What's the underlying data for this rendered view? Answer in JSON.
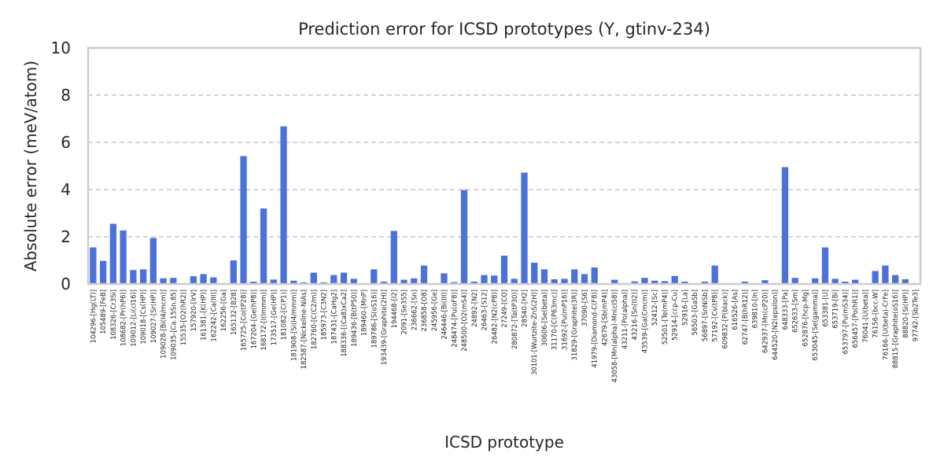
{
  "chart_data": {
    "type": "bar",
    "title": "Prediction error for ICSD prototypes (Y, gtinv-234)",
    "xlabel": "ICSD prototype",
    "ylabel": "Absolute error (meV/atom)",
    "ylim": [
      0,
      10
    ],
    "yticks": [
      0,
      2,
      4,
      6,
      8,
      10
    ],
    "grid": true,
    "bar_color": "#4C72D8",
    "categories": [
      "104296-[Hg(LT)]",
      "105489-[FeB]",
      "108326-[Cr3Si]",
      "108682-[Pr(hP6)]",
      "109012-[Li(cI16)]",
      "109018-[Cs(HP)]",
      "109027-[Sr(HP)]",
      "109028-[Bi(I4/mcm)]",
      "109035-[Ca.15Sn.85]",
      "15535-[O2(hR2)]",
      "157920-[IrV]",
      "161381-[K(HP)]",
      "162242-[Ca(III)]",
      "162256-[Ga]",
      "165132-[B28]",
      "165725-[Co(tP28)]",
      "167204-[Ge(hP8)]",
      "168172-[I(Immm)]",
      "173517-[Ge(HP)]",
      "181082-[C(P1)]",
      "181908-[Si(I4/mmm)]",
      "182587-[Nickeline-NiAs]",
      "182760-[C(C2/m)]",
      "185973-[C3N2]",
      "187431-[CaHg2]",
      "188336-[(Ca8)xCa2]",
      "189436-[B(tP50)]",
      "189460-[MnP]",
      "189786-[S(oS16)]",
      "193439-[Graphite(2H)]",
      "194468-[I2]",
      "2091-[Se3S5]",
      "236662-[Sn]",
      "236858-[O8]",
      "245956-[Ge]",
      "246446-[Bi(III)]",
      "248474-[Pu(oF8)]",
      "248500-[O2(mS4)]",
      "24892-[N2]",
      "26463-[S12]",
      "26482-[N2(cP8)]",
      "27249-[CO]",
      "280872-[Ta(tP30)]",
      "28540-[H2]",
      "30101-[Wurtzite-ZnS(2H)]",
      "30606-[Se(beta)]",
      "31170-[C(P63mc)]",
      "31692-[Pu(mP16)]",
      "31829-[Graphite(3R)]",
      "37090-[S6]",
      "41979-[Diamond-C(F8)]",
      "42679-[Sb(mP4)]",
      "43058-[Mn(alpha)-Mn(cI58)]",
      "43211-[Po(alpha)]",
      "43216-[Sn(tI2)]",
      "43539-[Ga(Cmcm)]",
      "52412-[Sc]",
      "52501-[Te(mP4)]",
      "52914-[ccp-Cu]",
      "52916-[La]",
      "56503-[GaSb]",
      "56897-[SnNiSb]",
      "57192-[Cs(tP8)]",
      "609832-[P(black)]",
      "616526-[As]",
      "62747-[B(hR12)]",
      "639810-[In]",
      "642937-[Mn(cP20)]",
      "644520-[N2(epsilon)]",
      "648333-[Pa]",
      "652633-[Sm]",
      "652876-[hcp-Mg]",
      "653045-[Se(gamma)]",
      "653381-[U]",
      "653719-[Bi]",
      "653797-[Pu(mS34)]",
      "656457-[Po(hR1)]",
      "76041-[U(beta)]",
      "76156-[bcc-W]",
      "76166-[U(beta)-CrFe]",
      "88815-[Graphite(oS16)]",
      "88820-[Si(HP)]",
      "97742-[Sb2Te3]"
    ],
    "values": [
      1.55,
      0.98,
      2.55,
      2.27,
      0.59,
      0.62,
      1.95,
      0.24,
      0.26,
      0.0,
      0.33,
      0.42,
      0.28,
      0.0,
      1.0,
      5.42,
      0.1,
      3.2,
      0.19,
      6.68,
      0.14,
      0.07,
      0.48,
      0.07,
      0.38,
      0.48,
      0.22,
      0.02,
      0.62,
      0.1,
      2.25,
      0.18,
      0.24,
      0.78,
      0.0,
      0.45,
      0.08,
      3.98,
      0.1,
      0.38,
      0.36,
      1.2,
      0.22,
      4.72,
      0.9,
      0.62,
      0.2,
      0.22,
      0.62,
      0.42,
      0.7,
      0.0,
      0.18,
      0.0,
      0.11,
      0.26,
      0.14,
      0.12,
      0.34,
      0.1,
      0.02,
      0.1,
      0.78,
      0.0,
      0.0,
      0.1,
      0.0,
      0.16,
      0.0,
      4.95,
      0.26,
      0.0,
      0.24,
      1.55,
      0.22,
      0.1,
      0.18,
      0.0,
      0.55,
      0.78,
      0.38,
      0.2,
      0.0
    ]
  }
}
